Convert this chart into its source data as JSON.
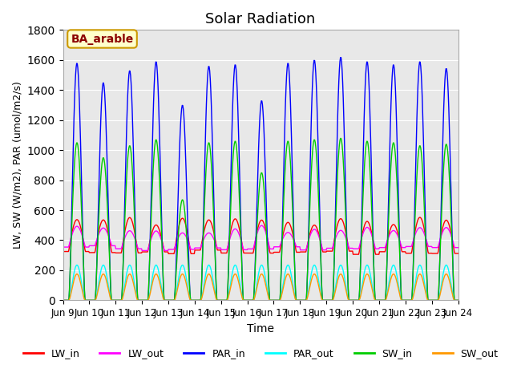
{
  "title": "Solar Radiation",
  "ylabel": "LW, SW (W/m2), PAR (umol/m2/s)",
  "xlabel": "Time",
  "annotation": "BA_arable",
  "ylim": [
    0,
    1800
  ],
  "yticks": [
    0,
    200,
    400,
    600,
    800,
    1000,
    1200,
    1400,
    1600,
    1800
  ],
  "xtick_labels": [
    "Jun 9",
    "Jun 10",
    "Jun 11",
    "Jun 12",
    "Jun 13",
    "Jun 14",
    "Jun 15",
    "Jun 16",
    "Jun 17",
    "Jun 18",
    "Jun 19",
    "Jun 20",
    "Jun 21",
    "Jun 22",
    "Jun 23",
    "Jun 24"
  ],
  "colors": {
    "LW_in": "#ff0000",
    "LW_out": "#ff00ff",
    "PAR_in": "#0000ff",
    "PAR_out": "#00ffff",
    "SW_in": "#00cc00",
    "SW_out": "#ff9900"
  },
  "background_color": "#e8e8e8",
  "n_days": 15,
  "par_peaks": [
    1580,
    1450,
    1530,
    1590,
    1300,
    1560,
    1570,
    1330,
    1580,
    1600,
    1620,
    1590,
    1570,
    1590,
    1545
  ],
  "sw_peaks": [
    1050,
    950,
    1030,
    1070,
    670,
    1050,
    1060,
    850,
    1060,
    1070,
    1080,
    1060,
    1050,
    1030,
    1040
  ]
}
